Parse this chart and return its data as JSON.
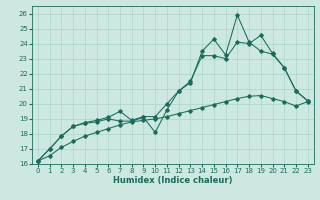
{
  "xlabel": "Humidex (Indice chaleur)",
  "xlim": [
    -0.5,
    23.5
  ],
  "ylim": [
    16,
    26.5
  ],
  "yticks": [
    16,
    17,
    18,
    19,
    20,
    21,
    22,
    23,
    24,
    25,
    26
  ],
  "xticks": [
    0,
    1,
    2,
    3,
    4,
    5,
    6,
    7,
    8,
    9,
    10,
    11,
    12,
    13,
    14,
    15,
    16,
    17,
    18,
    19,
    20,
    21,
    22,
    23
  ],
  "bg_color": "#cce8e0",
  "grid_color": "#aad4cc",
  "line_color": "#1a6b5a",
  "line1_x": [
    0,
    1,
    2,
    3,
    4,
    5,
    6,
    7,
    8,
    9,
    10,
    11,
    12,
    13,
    14,
    15,
    16,
    17,
    18,
    19,
    20,
    21,
    22,
    23
  ],
  "line1_y": [
    16.2,
    17.0,
    17.85,
    18.5,
    18.7,
    18.8,
    19.0,
    18.85,
    18.85,
    19.1,
    18.1,
    19.6,
    20.85,
    21.4,
    23.5,
    24.3,
    23.25,
    25.9,
    24.1,
    23.5,
    23.3,
    22.4,
    20.85,
    20.2
  ],
  "line2_x": [
    0,
    1,
    2,
    3,
    4,
    5,
    6,
    7,
    8,
    9,
    10,
    11,
    12,
    13,
    14,
    15,
    16,
    17,
    18,
    19,
    20,
    21,
    22,
    23
  ],
  "line2_y": [
    16.2,
    17.0,
    17.85,
    18.5,
    18.75,
    18.9,
    19.1,
    19.5,
    18.9,
    19.15,
    19.15,
    20.0,
    20.85,
    21.5,
    23.2,
    23.2,
    23.0,
    24.1,
    24.0,
    24.55,
    23.35,
    22.4,
    20.85,
    20.2
  ],
  "line3_x": [
    0,
    1,
    2,
    3,
    4,
    5,
    6,
    7,
    8,
    9,
    10,
    11,
    12,
    13,
    14,
    15,
    16,
    17,
    18,
    19,
    20,
    21,
    22,
    23
  ],
  "line3_y": [
    16.2,
    16.55,
    17.1,
    17.5,
    17.85,
    18.1,
    18.35,
    18.6,
    18.8,
    18.9,
    19.0,
    19.15,
    19.35,
    19.55,
    19.75,
    19.95,
    20.15,
    20.35,
    20.5,
    20.55,
    20.35,
    20.15,
    19.85,
    20.15
  ]
}
